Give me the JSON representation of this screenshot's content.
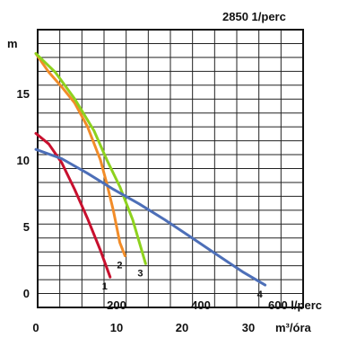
{
  "chart_data": {
    "type": "line",
    "title": "2850 1/perc",
    "ylabel": "m",
    "ylim": [
      0,
      18
    ],
    "y_ticks": [
      0,
      5,
      10,
      15
    ],
    "x_ticks_top": [
      "200",
      "400",
      "600 l/perc"
    ],
    "x_ticks_bottom": [
      "0",
      "10",
      "20",
      "30",
      "m³/óra"
    ],
    "grid": true,
    "x": {
      "unit": "m³/óra",
      "range": [
        0,
        40
      ]
    },
    "series": [
      {
        "name": "1",
        "color": "#c8102e",
        "points": [
          [
            0,
            12
          ],
          [
            2,
            11.2
          ],
          [
            4,
            9.8
          ],
          [
            6,
            7.8
          ],
          [
            8,
            5.6
          ],
          [
            10,
            3.2
          ],
          [
            11.5,
            1.2
          ]
        ]
      },
      {
        "name": "2",
        "color": "#f28c28",
        "points": [
          [
            0,
            18
          ],
          [
            2,
            16.6
          ],
          [
            4,
            15.5
          ],
          [
            6,
            14.3
          ],
          [
            8,
            12.5
          ],
          [
            10,
            10
          ],
          [
            11,
            8.2
          ],
          [
            12,
            6.2
          ],
          [
            13,
            3.8
          ],
          [
            13.8,
            2.8
          ]
        ]
      },
      {
        "name": "3",
        "color": "#8ed21e",
        "points": [
          [
            0,
            18
          ],
          [
            3,
            16.6
          ],
          [
            6,
            14.6
          ],
          [
            9,
            12.2
          ],
          [
            11,
            10
          ],
          [
            13,
            8
          ],
          [
            15,
            5.5
          ],
          [
            17,
            2.2
          ]
        ]
      },
      {
        "name": "4",
        "color": "#4d6fb8",
        "points": [
          [
            0,
            10.8
          ],
          [
            4,
            10.1
          ],
          [
            8,
            9
          ],
          [
            12,
            7.8
          ],
          [
            16,
            6.7
          ],
          [
            20,
            5.5
          ],
          [
            24,
            4.2
          ],
          [
            28,
            2.9
          ],
          [
            32,
            1.6
          ],
          [
            35.5,
            0.6
          ]
        ]
      }
    ]
  }
}
